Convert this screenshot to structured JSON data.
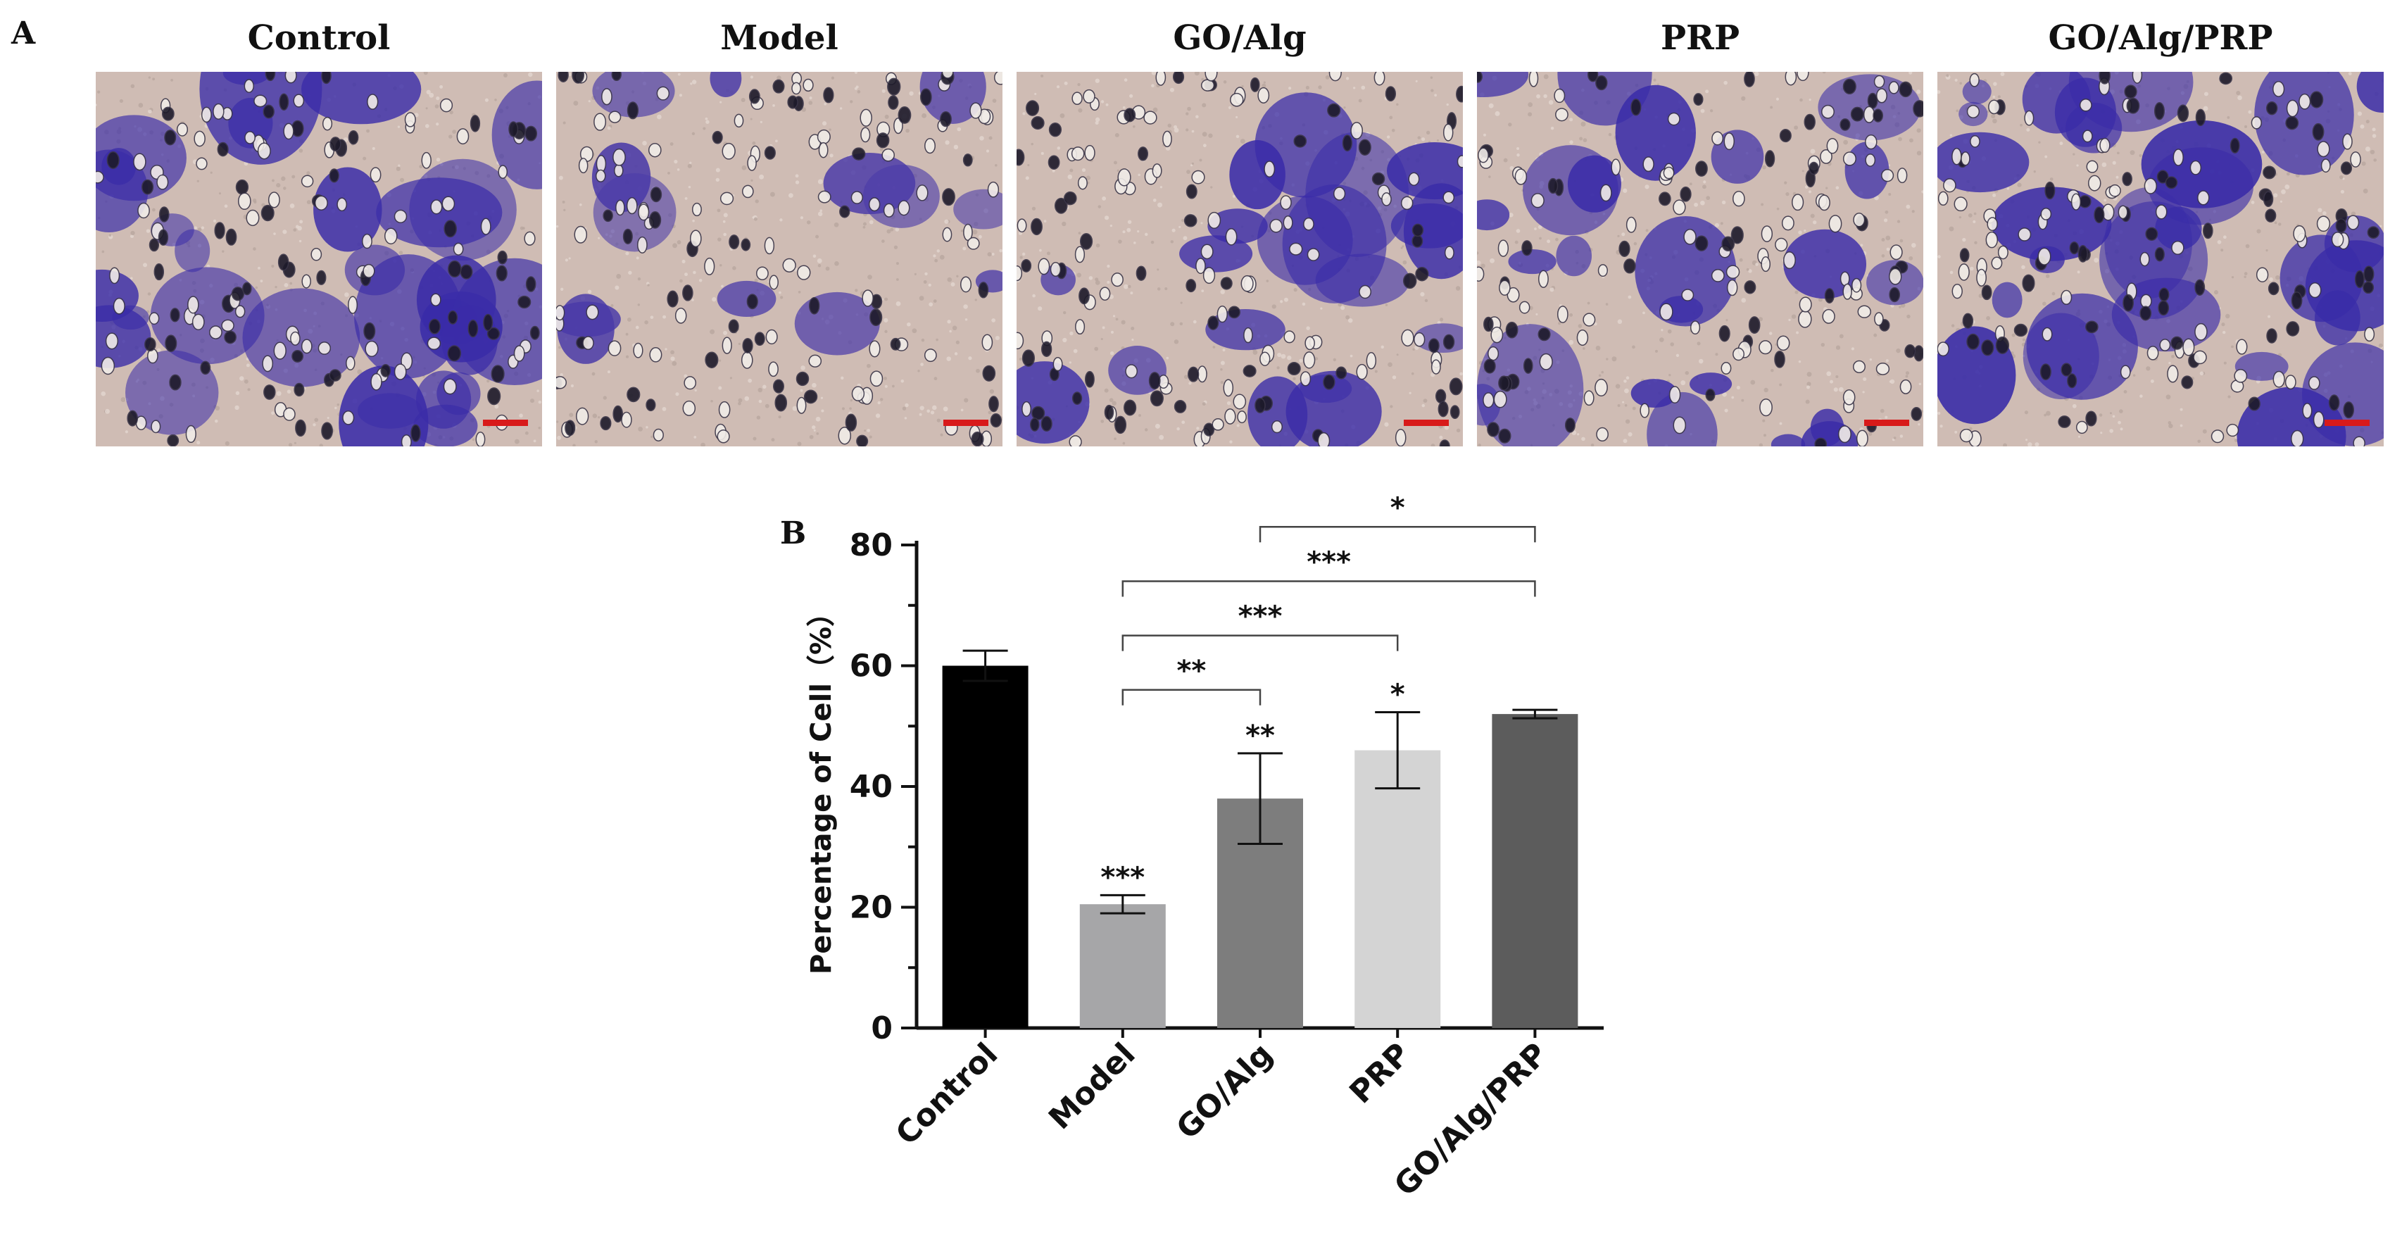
{
  "figure": {
    "panel_a_letter": "A",
    "panel_b_letter": "B"
  },
  "micrographs": [
    {
      "title": "Control",
      "stain_color": "#3a2ca8",
      "stain_coverage": 0.62
    },
    {
      "title": "Model",
      "stain_color": "#4a3aa8",
      "stain_coverage": 0.18
    },
    {
      "title": "GO/Alg",
      "stain_color": "#3a2ca8",
      "stain_coverage": 0.32
    },
    {
      "title": "PRP",
      "stain_color": "#3a2ca8",
      "stain_coverage": 0.42
    },
    {
      "title": "GO/Alg/PRP",
      "stain_color": "#3a2ca8",
      "stain_coverage": 0.55
    }
  ],
  "chart_data": {
    "type": "bar",
    "categories": [
      "Control",
      "Model",
      "GO/Alg",
      "PRP",
      "GO/Alg/PRP"
    ],
    "values": [
      60,
      20.5,
      38,
      46,
      52
    ],
    "errors": [
      2.5,
      1.5,
      7.5,
      6.3,
      0.7
    ],
    "bar_colors": [
      "#000000",
      "#a6a6a8",
      "#7d7d7d",
      "#d4d4d4",
      "#5c5c5c"
    ],
    "ylabel": "Percentage of Cell（%）",
    "ylim": [
      0,
      80
    ],
    "yticks": [
      0,
      20,
      40,
      60,
      80
    ],
    "bar_annotations": [
      "",
      "***",
      "**",
      "*",
      ""
    ],
    "comparisons": [
      {
        "from": 1,
        "to": 2,
        "label": "**",
        "level": 56
      },
      {
        "from": 1,
        "to": 3,
        "label": "***",
        "level": 65
      },
      {
        "from": 1,
        "to": 4,
        "label": "***",
        "level": 74
      },
      {
        "from": 2,
        "to": 4,
        "label": "*",
        "level": 83
      }
    ]
  }
}
